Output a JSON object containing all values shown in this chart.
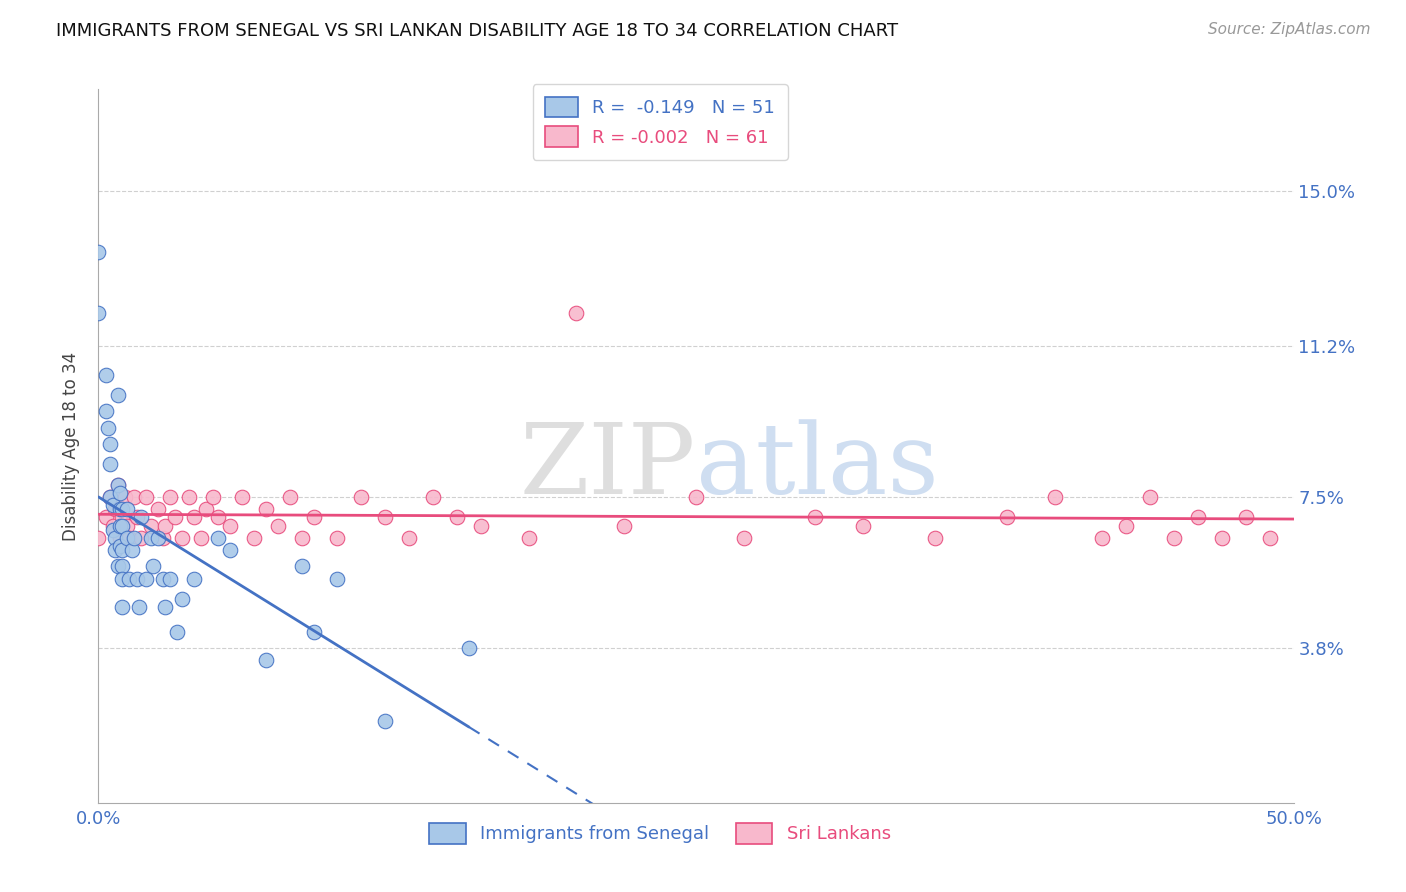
{
  "title": "IMMIGRANTS FROM SENEGAL VS SRI LANKAN DISABILITY AGE 18 TO 34 CORRELATION CHART",
  "source_text": "Source: ZipAtlas.com",
  "ylabel": "Disability Age 18 to 34",
  "xmin": 0.0,
  "xmax": 0.5,
  "ymin": 0.0,
  "ymax": 0.175,
  "yticks": [
    0.038,
    0.075,
    0.112,
    0.15
  ],
  "ytick_labels": [
    "3.8%",
    "7.5%",
    "11.2%",
    "15.0%"
  ],
  "xticks": [
    0.0,
    0.5
  ],
  "xtick_labels": [
    "0.0%",
    "50.0%"
  ],
  "r_senegal": -0.149,
  "n_senegal": 51,
  "r_srilanka": -0.002,
  "n_srilanka": 61,
  "color_senegal": "#a8c8e8",
  "color_srilanka": "#f8b8cc",
  "line_color_senegal": "#4472c4",
  "line_color_srilanka": "#e84c7d",
  "watermark_zip": "ZIP",
  "watermark_atlas": "atlas",
  "senegal_x": [
    0.0,
    0.0,
    0.003,
    0.003,
    0.004,
    0.005,
    0.005,
    0.005,
    0.006,
    0.006,
    0.007,
    0.007,
    0.008,
    0.008,
    0.008,
    0.009,
    0.009,
    0.009,
    0.009,
    0.01,
    0.01,
    0.01,
    0.01,
    0.01,
    0.01,
    0.012,
    0.012,
    0.013,
    0.014,
    0.015,
    0.016,
    0.017,
    0.018,
    0.02,
    0.022,
    0.023,
    0.025,
    0.027,
    0.028,
    0.03,
    0.033,
    0.035,
    0.04,
    0.05,
    0.055,
    0.07,
    0.085,
    0.09,
    0.1,
    0.12,
    0.155
  ],
  "senegal_y": [
    0.135,
    0.12,
    0.105,
    0.096,
    0.092,
    0.088,
    0.083,
    0.075,
    0.073,
    0.067,
    0.065,
    0.062,
    0.1,
    0.078,
    0.058,
    0.076,
    0.072,
    0.068,
    0.063,
    0.072,
    0.068,
    0.062,
    0.058,
    0.055,
    0.048,
    0.072,
    0.065,
    0.055,
    0.062,
    0.065,
    0.055,
    0.048,
    0.07,
    0.055,
    0.065,
    0.058,
    0.065,
    0.055,
    0.048,
    0.055,
    0.042,
    0.05,
    0.055,
    0.065,
    0.062,
    0.035,
    0.058,
    0.042,
    0.055,
    0.02,
    0.038
  ],
  "srilanka_x": [
    0.0,
    0.003,
    0.005,
    0.006,
    0.007,
    0.008,
    0.009,
    0.01,
    0.011,
    0.012,
    0.013,
    0.015,
    0.016,
    0.018,
    0.02,
    0.022,
    0.025,
    0.027,
    0.028,
    0.03,
    0.032,
    0.035,
    0.038,
    0.04,
    0.043,
    0.045,
    0.048,
    0.05,
    0.055,
    0.06,
    0.065,
    0.07,
    0.075,
    0.08,
    0.085,
    0.09,
    0.1,
    0.11,
    0.12,
    0.13,
    0.14,
    0.15,
    0.16,
    0.18,
    0.2,
    0.22,
    0.25,
    0.27,
    0.3,
    0.32,
    0.35,
    0.38,
    0.4,
    0.42,
    0.43,
    0.44,
    0.45,
    0.46,
    0.47,
    0.48,
    0.49
  ],
  "srilanka_y": [
    0.065,
    0.07,
    0.075,
    0.068,
    0.072,
    0.078,
    0.065,
    0.07,
    0.075,
    0.068,
    0.065,
    0.075,
    0.07,
    0.065,
    0.075,
    0.068,
    0.072,
    0.065,
    0.068,
    0.075,
    0.07,
    0.065,
    0.075,
    0.07,
    0.065,
    0.072,
    0.075,
    0.07,
    0.068,
    0.075,
    0.065,
    0.072,
    0.068,
    0.075,
    0.065,
    0.07,
    0.065,
    0.075,
    0.07,
    0.065,
    0.075,
    0.07,
    0.068,
    0.065,
    0.12,
    0.068,
    0.075,
    0.065,
    0.07,
    0.068,
    0.065,
    0.07,
    0.075,
    0.065,
    0.068,
    0.075,
    0.065,
    0.07,
    0.065,
    0.07,
    0.065
  ]
}
